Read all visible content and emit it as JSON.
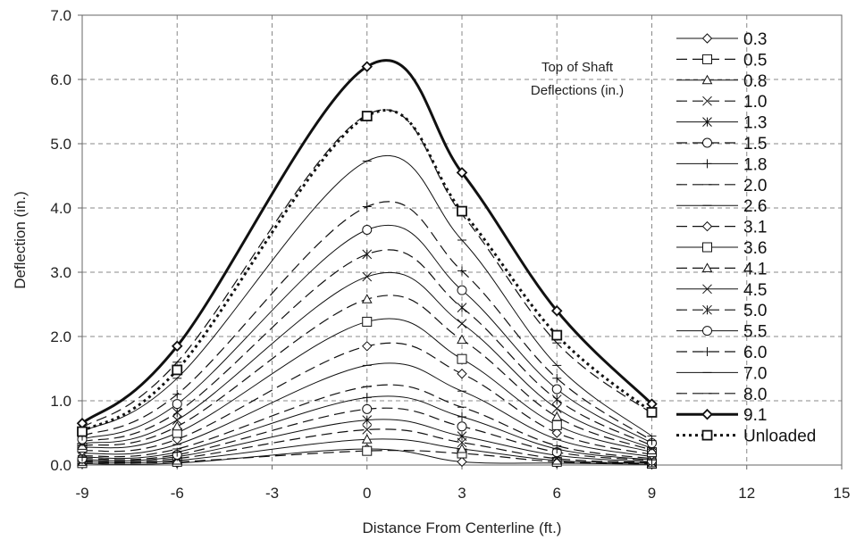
{
  "chart_data": {
    "type": "line",
    "xlabel": "Distance From Centerline (ft.)",
    "ylabel": "Deflection (in.)",
    "xlim": [
      -9,
      15
    ],
    "ylim": [
      0,
      7
    ],
    "xticks": [
      "-9",
      "-6",
      "-3",
      "0",
      "3",
      "6",
      "9",
      "12",
      "15"
    ],
    "yticks": [
      "0.0",
      "1.0",
      "2.0",
      "3.0",
      "4.0",
      "5.0",
      "6.0",
      "7.0"
    ],
    "grid": true,
    "legend_position": "right",
    "annotation": [
      "Top of Shaft",
      "Deflections (in.)"
    ],
    "x": [
      -9,
      -6,
      0,
      3,
      6,
      9
    ],
    "series": [
      {
        "name": "0.3",
        "marker": "diamond",
        "dash": "solid",
        "stroke": 1,
        "values": [
          0.02,
          0.03,
          0.25,
          0.05,
          0.03,
          0.01
        ]
      },
      {
        "name": "0.5",
        "marker": "square",
        "dash": "dash",
        "stroke": 1.2,
        "values": [
          0.03,
          0.05,
          0.22,
          0.18,
          0.05,
          0.02
        ]
      },
      {
        "name": "0.8",
        "marker": "triangle",
        "dash": "solid",
        "stroke": 1,
        "values": [
          0.05,
          0.07,
          0.4,
          0.25,
          0.07,
          0.03
        ]
      },
      {
        "name": "1.0",
        "marker": "x",
        "dash": "dash",
        "stroke": 1.2,
        "values": [
          0.06,
          0.1,
          0.55,
          0.35,
          0.1,
          0.04
        ]
      },
      {
        "name": "1.3",
        "marker": "asterisk",
        "dash": "solid",
        "stroke": 1,
        "values": [
          0.08,
          0.13,
          0.7,
          0.45,
          0.15,
          0.05
        ]
      },
      {
        "name": "1.5",
        "marker": "circle",
        "dash": "dash",
        "stroke": 1.2,
        "values": [
          0.1,
          0.16,
          0.87,
          0.6,
          0.2,
          0.07
        ]
      },
      {
        "name": "1.8",
        "marker": "plus",
        "dash": "solid",
        "stroke": 1,
        "values": [
          0.12,
          0.2,
          1.05,
          0.75,
          0.25,
          0.08
        ]
      },
      {
        "name": "2.0",
        "marker": "bar",
        "dash": "dash",
        "stroke": 1.2,
        "values": [
          0.14,
          0.25,
          1.22,
          0.9,
          0.3,
          0.1
        ]
      },
      {
        "name": "2.6",
        "marker": "bar",
        "dash": "solid",
        "stroke": 1,
        "values": [
          0.18,
          0.32,
          1.55,
          1.15,
          0.4,
          0.13
        ]
      },
      {
        "name": "3.1",
        "marker": "diamond",
        "dash": "dash",
        "stroke": 1.2,
        "values": [
          0.22,
          0.4,
          1.85,
          1.42,
          0.5,
          0.16
        ]
      },
      {
        "name": "3.6",
        "marker": "square",
        "dash": "solid",
        "stroke": 1,
        "values": [
          0.27,
          0.5,
          2.23,
          1.65,
          0.62,
          0.2
        ]
      },
      {
        "name": "4.1",
        "marker": "triangle",
        "dash": "dash",
        "stroke": 1.2,
        "values": [
          0.3,
          0.6,
          2.58,
          1.95,
          0.75,
          0.23
        ]
      },
      {
        "name": "4.5",
        "marker": "x",
        "dash": "solid",
        "stroke": 1,
        "values": [
          0.33,
          0.7,
          2.93,
          2.2,
          0.88,
          0.26
        ]
      },
      {
        "name": "5.0",
        "marker": "asterisk",
        "dash": "dash",
        "stroke": 1.2,
        "values": [
          0.36,
          0.82,
          3.28,
          2.45,
          1.02,
          0.3
        ]
      },
      {
        "name": "5.5",
        "marker": "circle",
        "dash": "solid",
        "stroke": 1,
        "values": [
          0.4,
          0.95,
          3.66,
          2.72,
          1.18,
          0.34
        ]
      },
      {
        "name": "6.0",
        "marker": "plus",
        "dash": "dash",
        "stroke": 1.2,
        "values": [
          0.45,
          1.1,
          4.02,
          3.02,
          1.35,
          0.38
        ]
      },
      {
        "name": "7.0",
        "marker": "bar",
        "dash": "solid",
        "stroke": 1,
        "values": [
          0.52,
          1.35,
          4.73,
          3.5,
          1.55,
          0.45
        ]
      },
      {
        "name": "8.0",
        "marker": "bar",
        "dash": "dash",
        "stroke": 1.2,
        "values": [
          0.58,
          1.6,
          5.45,
          3.9,
          1.9,
          0.8
        ]
      },
      {
        "name": "9.1",
        "marker": "diamond",
        "dash": "solid",
        "stroke": 3,
        "values": [
          0.65,
          1.85,
          6.2,
          4.55,
          2.4,
          0.95
        ]
      },
      {
        "name": "Unloaded",
        "marker": "square",
        "dash": "dot",
        "stroke": 3,
        "values": [
          0.52,
          1.48,
          5.43,
          3.95,
          2.02,
          0.82
        ]
      }
    ]
  }
}
